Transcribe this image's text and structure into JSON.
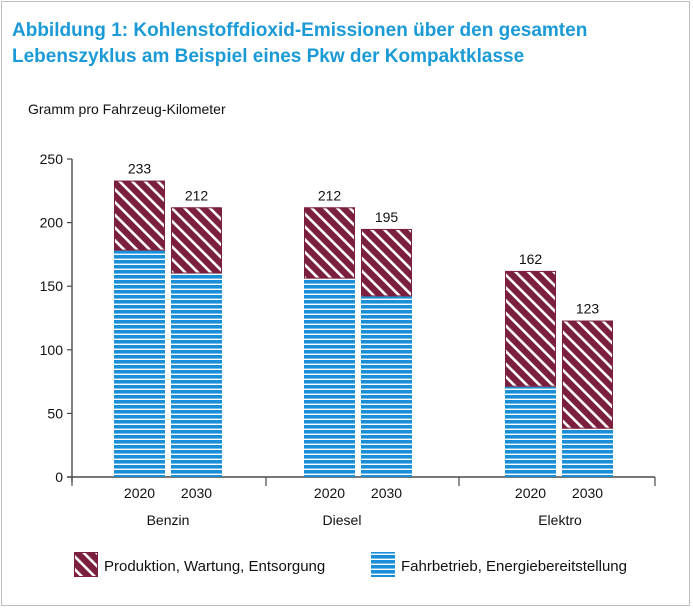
{
  "title": "Abbildung 1: Kohlenstoffdioxid-Emissionen über den gesamten Lebenszyklus am Beispiel eines Pkw der Kompaktklasse",
  "colors": {
    "title": "#1a9ad6",
    "production": "#7a1f3d",
    "operation": "#1a8fd8",
    "axis": "#4a4a4a"
  },
  "chart_data": {
    "type": "bar",
    "stacked": true,
    "title": "Abbildung 1: Kohlenstoffdioxid-Emissionen über den gesamten Lebenszyklus am Beispiel eines Pkw der Kompaktklasse",
    "ylabel": "Gramm pro Fahrzeug-Kilometer",
    "xlabel": "",
    "ylim": [
      0,
      250
    ],
    "yticks": [
      0,
      50,
      100,
      150,
      200,
      250
    ],
    "groups": [
      "Benzin",
      "Diesel",
      "Elektro"
    ],
    "categories": [
      "2020",
      "2030",
      "2020",
      "2030",
      "2020",
      "2030"
    ],
    "group_of_category": [
      0,
      0,
      1,
      1,
      2,
      2
    ],
    "totals": [
      233,
      212,
      212,
      195,
      162,
      123
    ],
    "series": [
      {
        "name": "Fahrbetrieb, Energiebereitstellung",
        "values": [
          178,
          160,
          156,
          142,
          71,
          38
        ]
      },
      {
        "name": "Produktion, Wartung, Entsorgung",
        "values": [
          55,
          52,
          56,
          53,
          91,
          85
        ]
      }
    ],
    "grid": false,
    "legend_position": "bottom"
  }
}
